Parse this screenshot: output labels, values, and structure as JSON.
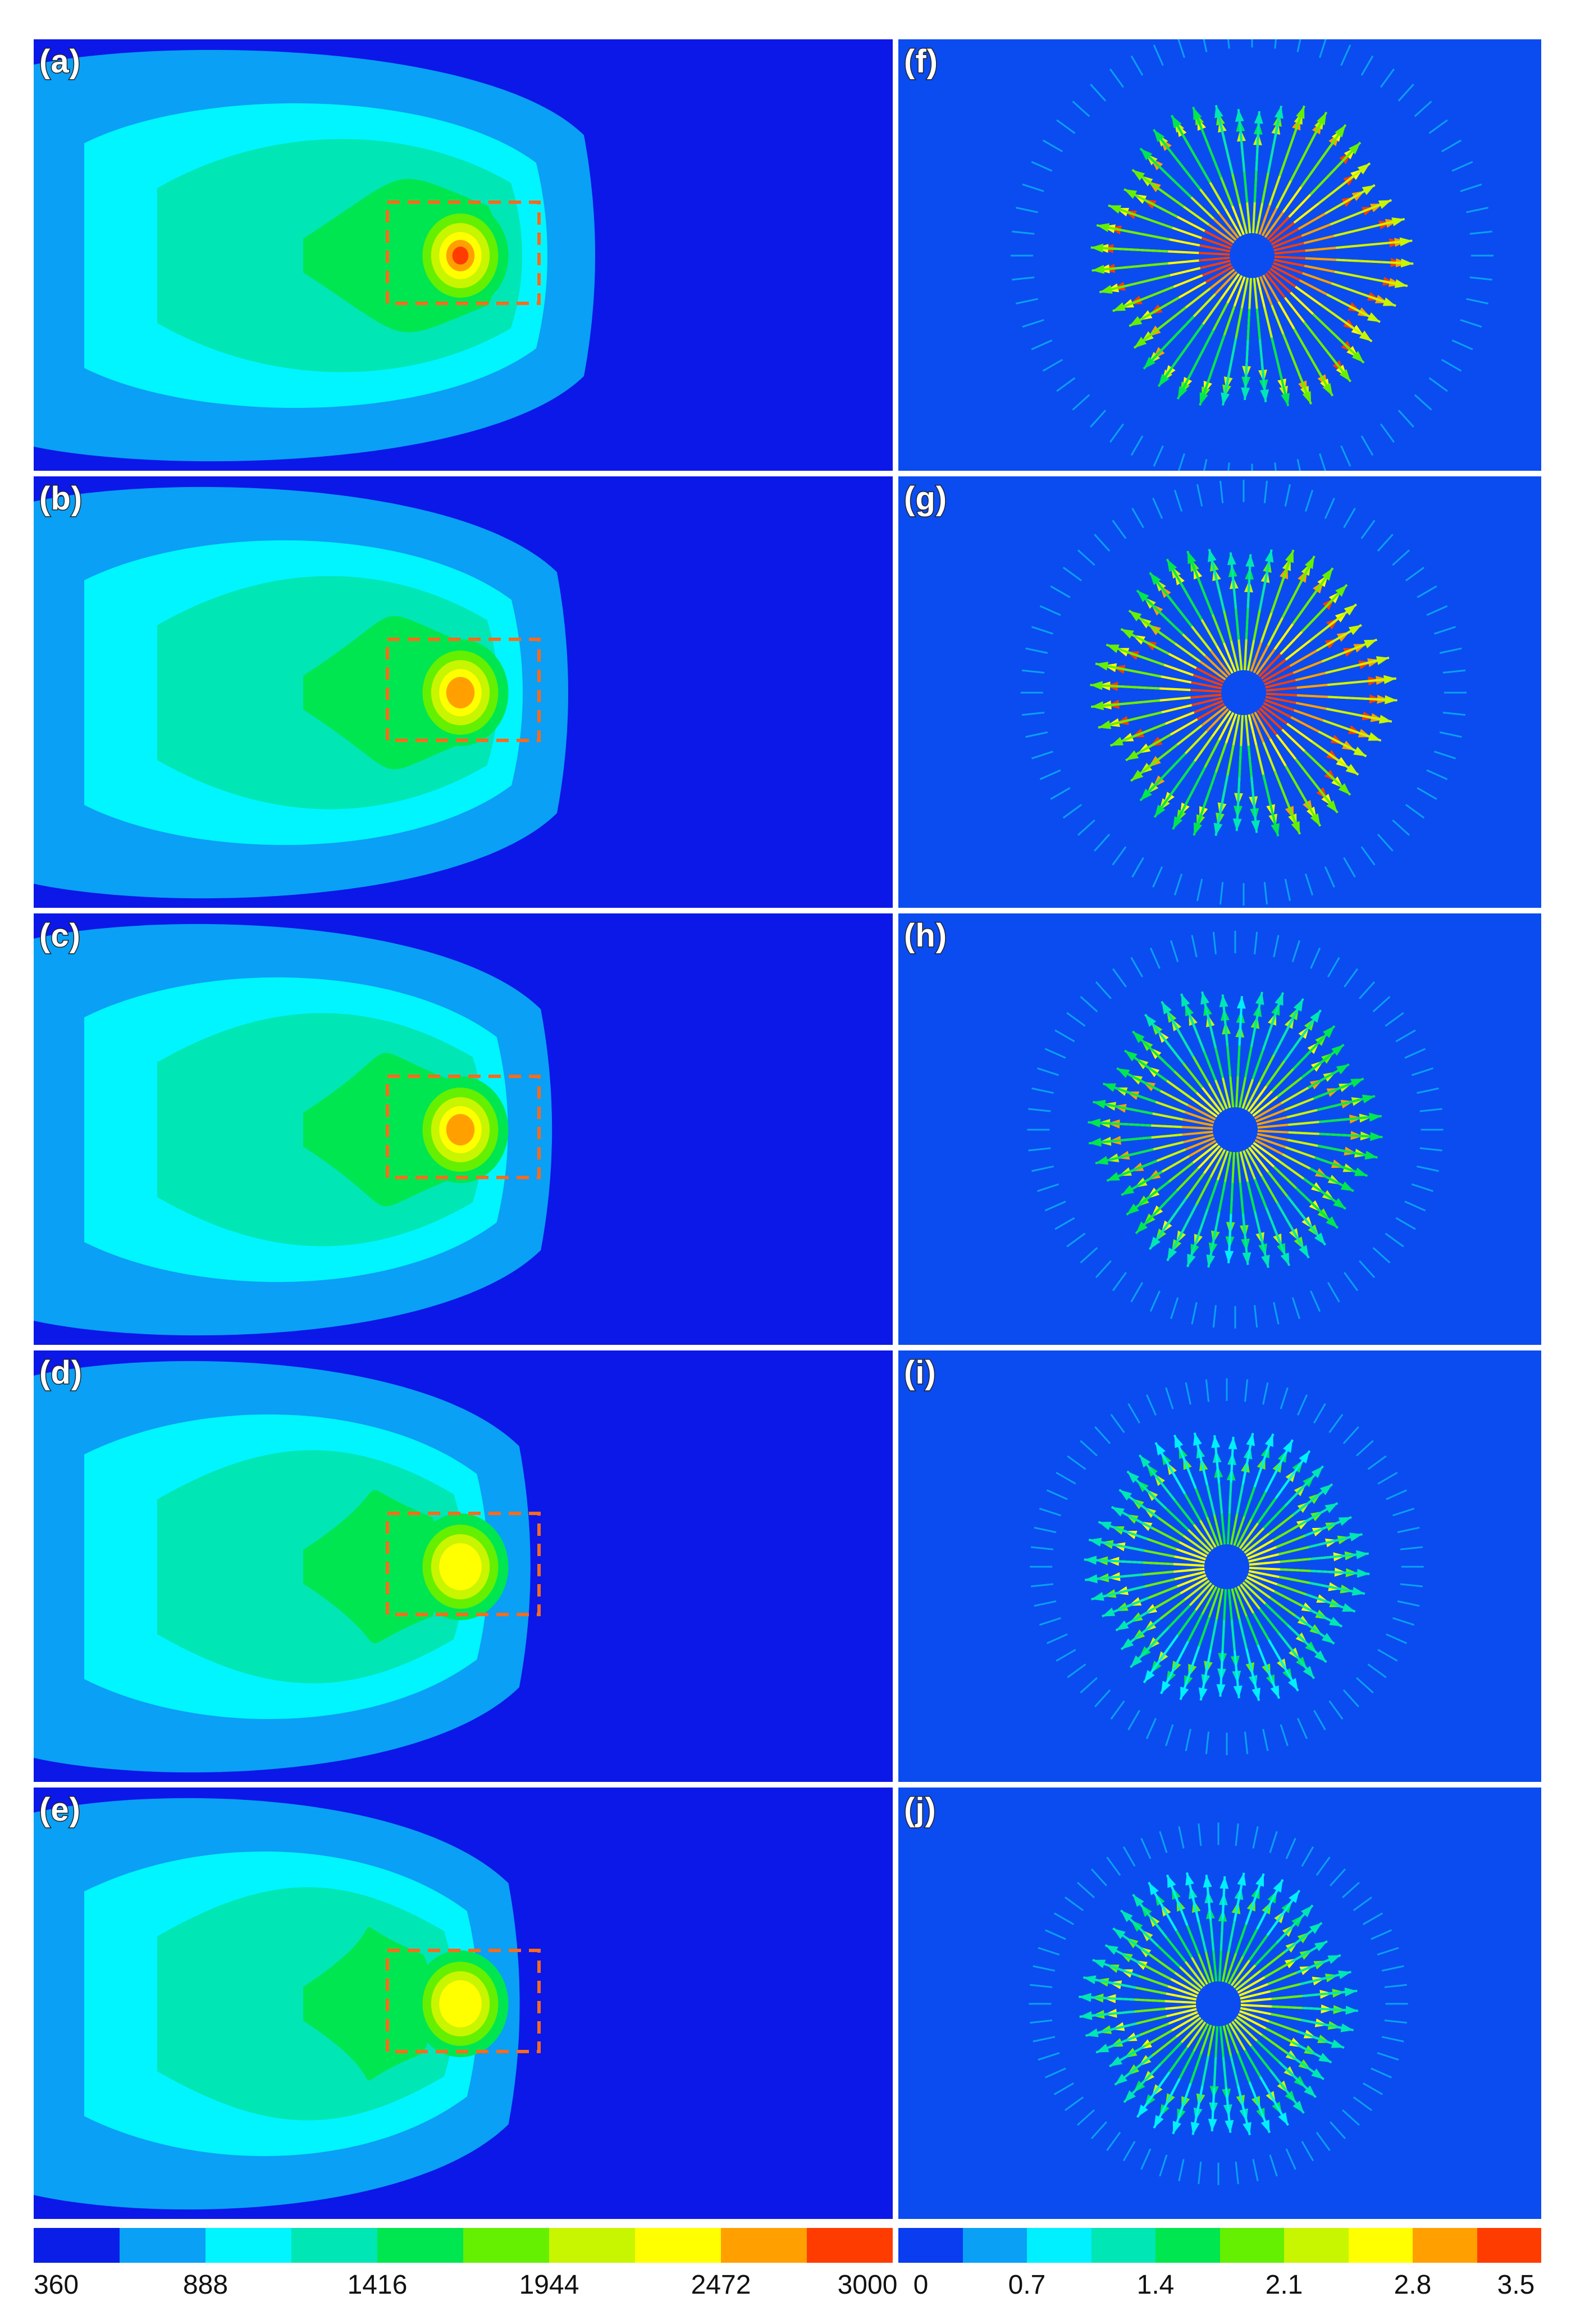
{
  "panels_left": [
    {
      "label": "(a)"
    },
    {
      "label": "(b)"
    },
    {
      "label": "(c)"
    },
    {
      "label": "(d)"
    },
    {
      "label": "(e)"
    }
  ],
  "panels_right": [
    {
      "label": "(f)"
    },
    {
      "label": "(g)"
    },
    {
      "label": "(h)"
    },
    {
      "label": "(i)"
    },
    {
      "label": "(j)"
    }
  ],
  "temperature_colorbar": {
    "colors": [
      "#0a1ee8",
      "#0aa0f5",
      "#00f5ff",
      "#00e6b4",
      "#00e650",
      "#64f000",
      "#c8f500",
      "#ffff00",
      "#ffa000",
      "#ff3c00"
    ],
    "tick_labels": [
      "360",
      "888",
      "1416",
      "1944",
      "2472",
      "3000"
    ]
  },
  "velocity_colorbar": {
    "colors": [
      "#0a3cf0",
      "#0aa0f5",
      "#00f0ff",
      "#00e6b4",
      "#00e650",
      "#64f000",
      "#c8f500",
      "#ffff00",
      "#ffa000",
      "#ff3c00"
    ],
    "tick_labels": [
      "0",
      "0.7",
      "1.4",
      "2.1",
      "2.8",
      "3.5"
    ]
  },
  "highlight_color": "#ff6a1a"
}
